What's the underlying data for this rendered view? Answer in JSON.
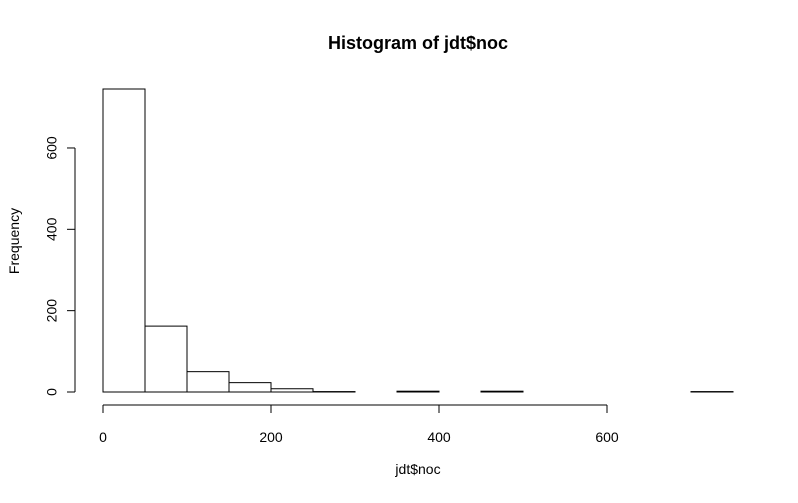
{
  "chart_data": {
    "type": "bar",
    "title": "Histogram of jdt$noc",
    "xlabel": "jdt$noc",
    "ylabel": "Frequency",
    "bins": [
      [
        0,
        50
      ],
      [
        50,
        100
      ],
      [
        100,
        150
      ],
      [
        150,
        200
      ],
      [
        200,
        250
      ],
      [
        250,
        300
      ],
      [
        300,
        350
      ],
      [
        350,
        400
      ],
      [
        400,
        450
      ],
      [
        450,
        500
      ],
      [
        500,
        550
      ],
      [
        550,
        600
      ],
      [
        600,
        650
      ],
      [
        650,
        700
      ],
      [
        700,
        750
      ]
    ],
    "values": [
      745,
      162,
      50,
      23,
      8,
      1,
      0,
      2,
      0,
      2,
      0,
      0,
      0,
      0,
      1
    ],
    "xlim": [
      0,
      750
    ],
    "ylim": [
      0,
      745
    ],
    "x_ticks": [
      0,
      200,
      400,
      600
    ],
    "y_ticks": [
      0,
      200,
      400,
      600
    ],
    "x_tick_labels": [
      "0",
      "200",
      "400",
      "600"
    ],
    "y_tick_labels": [
      "0",
      "200",
      "400",
      "600"
    ],
    "grid": false,
    "legend": "none"
  }
}
